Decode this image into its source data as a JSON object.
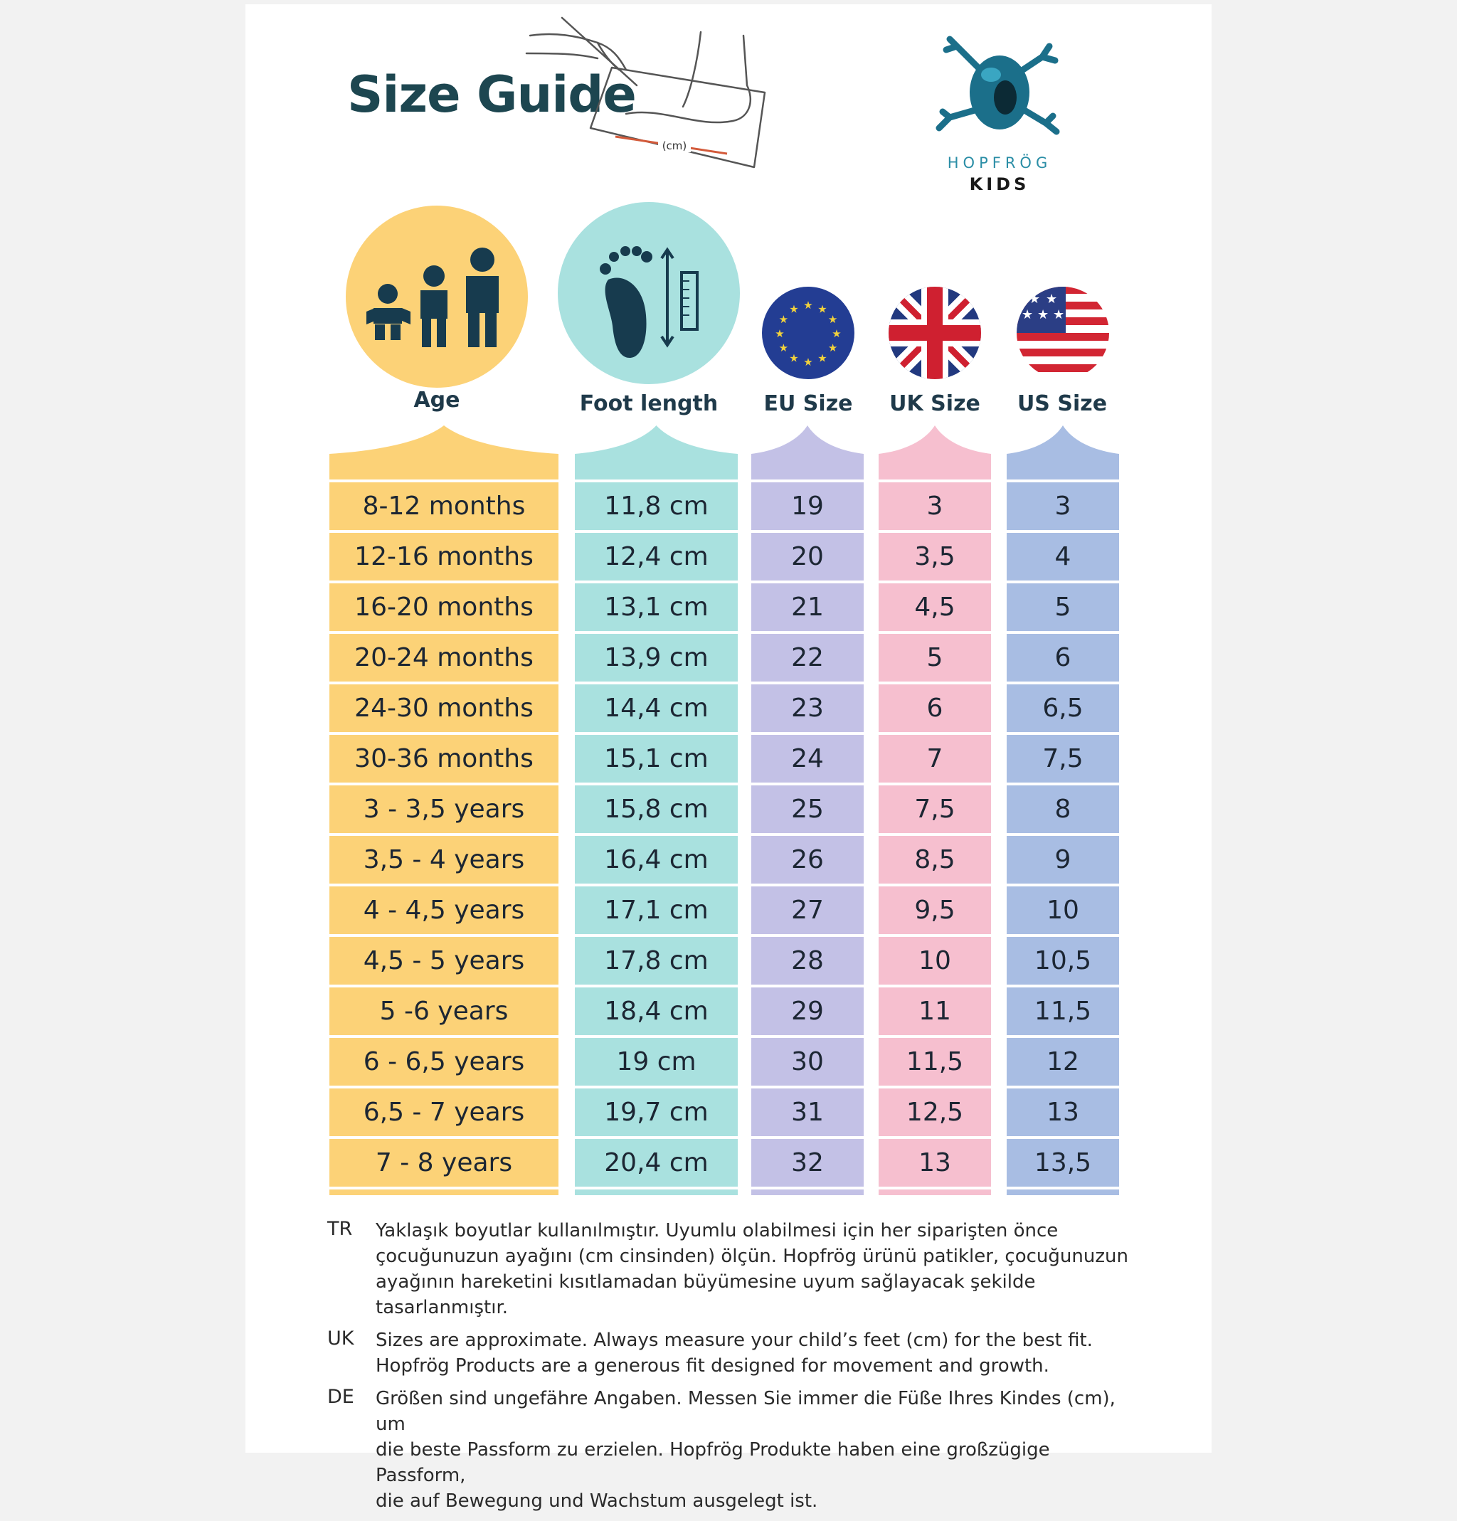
{
  "header": {
    "title": "Size Guide",
    "sketch_label": "(cm)",
    "brand_name": "HOPFRÖG",
    "brand_sub": "KIDS"
  },
  "columns": {
    "age": {
      "label": "Age",
      "color": "#fcd277"
    },
    "foot": {
      "label": "Foot length",
      "color": "#a9e1df"
    },
    "eu": {
      "label": "EU Size",
      "color": "#c3c1e6"
    },
    "uk": {
      "label": "UK Size",
      "color": "#f6bfcf"
    },
    "us": {
      "label": "US Size",
      "color": "#a8bde3"
    }
  },
  "rows": [
    {
      "age": "8-12 months",
      "foot": "11,8 cm",
      "eu": "19",
      "uk": "3",
      "us": "3"
    },
    {
      "age": "12-16 months",
      "foot": "12,4 cm",
      "eu": "20",
      "uk": "3,5",
      "us": "4"
    },
    {
      "age": "16-20 months",
      "foot": "13,1 cm",
      "eu": "21",
      "uk": "4,5",
      "us": "5"
    },
    {
      "age": "20-24 months",
      "foot": "13,9 cm",
      "eu": "22",
      "uk": "5",
      "us": "6"
    },
    {
      "age": "24-30 months",
      "foot": "14,4 cm",
      "eu": "23",
      "uk": "6",
      "us": "6,5"
    },
    {
      "age": "30-36 months",
      "foot": "15,1 cm",
      "eu": "24",
      "uk": "7",
      "us": "7,5"
    },
    {
      "age": "3 - 3,5 years",
      "foot": "15,8 cm",
      "eu": "25",
      "uk": "7,5",
      "us": "8"
    },
    {
      "age": "3,5 - 4 years",
      "foot": "16,4 cm",
      "eu": "26",
      "uk": "8,5",
      "us": "9"
    },
    {
      "age": "4 - 4,5 years",
      "foot": "17,1 cm",
      "eu": "27",
      "uk": "9,5",
      "us": "10"
    },
    {
      "age": "4,5 - 5 years",
      "foot": "17,8 cm",
      "eu": "28",
      "uk": "10",
      "us": "10,5"
    },
    {
      "age": "5 -6 years",
      "foot": "18,4 cm",
      "eu": "29",
      "uk": "11",
      "us": "11,5"
    },
    {
      "age": "6 - 6,5 years",
      "foot": "19 cm",
      "eu": "30",
      "uk": "11,5",
      "us": "12"
    },
    {
      "age": "6,5 - 7 years",
      "foot": "19,7 cm",
      "eu": "31",
      "uk": "12,5",
      "us": "13"
    },
    {
      "age": "7 - 8 years",
      "foot": "20,4 cm",
      "eu": "32",
      "uk": "13",
      "us": "13,5"
    }
  ],
  "notes": [
    {
      "code": "TR",
      "lines": [
        "Yaklaşık boyutlar kullanılmıştır. Uyumlu olabilmesi için her siparişten önce",
        "çocuğunuzun ayağını (cm cinsinden) ölçün. Hopfrög ürünü patikler, çocuğunuzun",
        "ayağının hareketini kısıtlamadan büyümesine uyum sağlayacak şekilde tasarlanmıştır."
      ]
    },
    {
      "code": "UK",
      "lines": [
        "Sizes are approximate. Always measure your child’s feet (cm) for the best fit.",
        "Hopfrög Products are a generous fit designed for movement and growth."
      ]
    },
    {
      "code": "DE",
      "lines": [
        "Größen sind ungefähre Angaben. Messen Sie immer die Füße Ihres Kindes (cm), um",
        "die beste Passform zu erzielen. Hopfrög Produkte haben eine großzügige Passform,",
        "die auf Bewegung und Wachstum ausgelegt ist."
      ]
    }
  ],
  "icons": [
    "children-age-icon",
    "footprint-ruler-icon",
    "eu-flag-icon",
    "uk-flag-icon",
    "us-flag-icon",
    "frog-logo-icon",
    "foot-measuring-sketch-icon"
  ]
}
